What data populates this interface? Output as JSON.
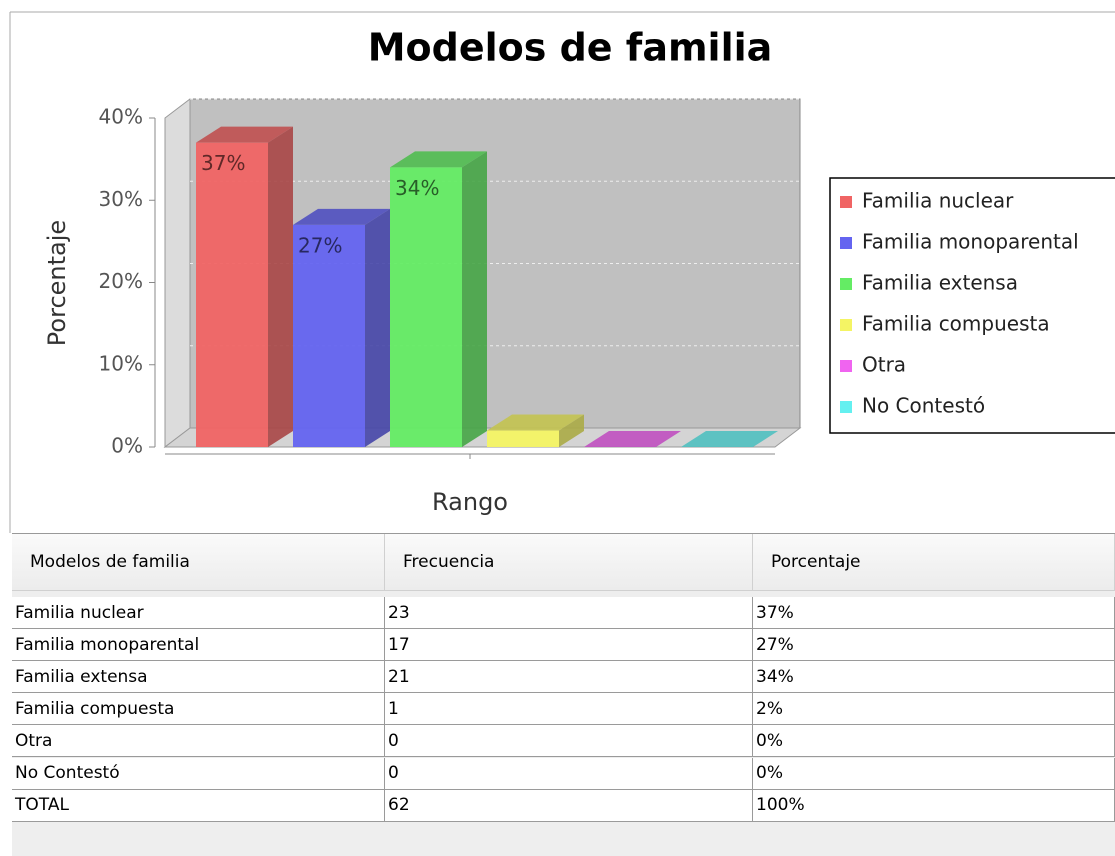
{
  "chart_data": {
    "type": "bar3d",
    "title": "Modelos de familia",
    "xlabel": "Rango",
    "ylabel": "Porcentaje",
    "categories": [
      null
    ],
    "series": [
      {
        "name": "Familia nuclear",
        "color": "#f06464",
        "values": [
          37
        ],
        "value_labels": [
          "37%"
        ]
      },
      {
        "name": "Familia monoparental",
        "color": "#6464f0",
        "values": [
          27
        ],
        "value_labels": [
          "27%"
        ]
      },
      {
        "name": "Familia extensa",
        "color": "#64ec64",
        "values": [
          34
        ],
        "value_labels": [
          "34%"
        ]
      },
      {
        "name": "Familia compuesta",
        "color": "#f4f464",
        "values": [
          2
        ]
      },
      {
        "name": "Otra",
        "color": "#f064f0",
        "values": [
          0
        ]
      },
      {
        "name": "No Contestó",
        "color": "#64f0f0",
        "values": [
          0
        ]
      }
    ],
    "ylim": [
      0,
      40
    ],
    "yticks": [
      {
        "value": 0,
        "label": "0%"
      },
      {
        "value": 10,
        "label": "10%"
      },
      {
        "value": 20,
        "label": "20%"
      },
      {
        "value": 30,
        "label": "30%"
      },
      {
        "value": 40,
        "label": "40%"
      }
    ],
    "grid": true,
    "legend": "right"
  },
  "table": {
    "header": [
      "Modelos de familia",
      "Frecuencia",
      "Porcentaje"
    ],
    "rows": [
      [
        "Familia nuclear",
        "23",
        "37%"
      ],
      [
        "Familia monoparental",
        "17",
        "27%"
      ],
      [
        "Familia extensa",
        "21",
        "34%"
      ],
      [
        "Familia compuesta",
        "1",
        "2%"
      ],
      [
        "Otra",
        "0",
        "0%"
      ],
      [
        "No Contestó",
        "0",
        "0%"
      ],
      [
        "TOTAL",
        "62",
        "100%"
      ]
    ]
  }
}
